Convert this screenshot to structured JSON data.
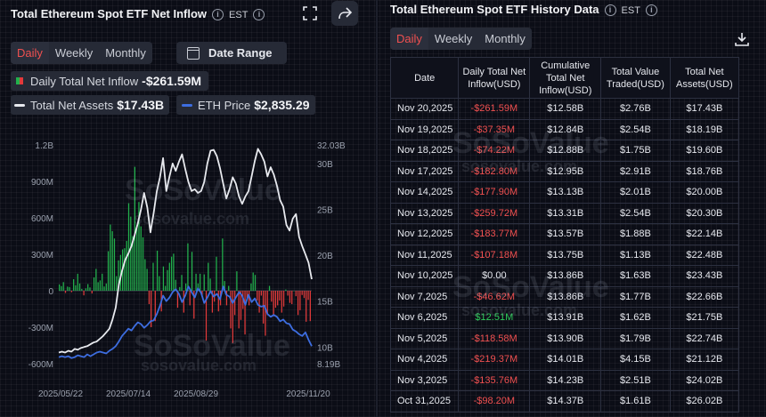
{
  "left": {
    "title": "Total Ethereum Spot ETF Net Inflow",
    "tz": "EST",
    "tabs": [
      "Daily",
      "Weekly",
      "Monthly"
    ],
    "date_range_label": "Date Range",
    "inflow_label": "Daily Total Net Inflow",
    "inflow_value": "-$261.59M",
    "assets_label": "Total Net Assets",
    "assets_value": "$17.43B",
    "eth_label": "ETH Price",
    "eth_value": "$2,835.29",
    "watermark_brand": "SoSoValue",
    "watermark_url": "sosovalue.com"
  },
  "right": {
    "title": "Total Ethereum Spot ETF History Data",
    "tz": "EST",
    "tabs": [
      "Daily",
      "Weekly",
      "Monthly"
    ],
    "columns": [
      "Date",
      "Daily Total Net Inflow(USD)",
      "Cumulative Total Net Inflow(USD)",
      "Total Value Traded(USD)",
      "Total Net Assets(USD)"
    ],
    "rows": [
      {
        "date": "Nov 20,2025",
        "inflow": "-$261.59M",
        "cum": "$12.58B",
        "traded": "$2.76B",
        "assets": "$17.43B"
      },
      {
        "date": "Nov 19,2025",
        "inflow": "-$37.35M",
        "cum": "$12.84B",
        "traded": "$2.54B",
        "assets": "$18.19B"
      },
      {
        "date": "Nov 18,2025",
        "inflow": "-$74.22M",
        "cum": "$12.88B",
        "traded": "$1.75B",
        "assets": "$19.60B"
      },
      {
        "date": "Nov 17,2025",
        "inflow": "-$182.80M",
        "cum": "$12.95B",
        "traded": "$2.91B",
        "assets": "$18.76B"
      },
      {
        "date": "Nov 14,2025",
        "inflow": "-$177.90M",
        "cum": "$13.13B",
        "traded": "$2.01B",
        "assets": "$20.00B"
      },
      {
        "date": "Nov 13,2025",
        "inflow": "-$259.72M",
        "cum": "$13.31B",
        "traded": "$2.54B",
        "assets": "$20.30B"
      },
      {
        "date": "Nov 12,2025",
        "inflow": "-$183.77M",
        "cum": "$13.57B",
        "traded": "$1.88B",
        "assets": "$22.14B"
      },
      {
        "date": "Nov 11,2025",
        "inflow": "-$107.18M",
        "cum": "$13.75B",
        "traded": "$1.13B",
        "assets": "$22.48B"
      },
      {
        "date": "Nov 10,2025",
        "inflow": "$0.00",
        "cum": "$13.86B",
        "traded": "$1.63B",
        "assets": "$23.43B"
      },
      {
        "date": "Nov 7,2025",
        "inflow": "-$46.62M",
        "cum": "$13.86B",
        "traded": "$1.77B",
        "assets": "$22.66B"
      },
      {
        "date": "Nov 6,2025",
        "inflow": "$12.51M",
        "cum": "$13.91B",
        "traded": "$1.62B",
        "assets": "$21.75B"
      },
      {
        "date": "Nov 5,2025",
        "inflow": "-$118.58M",
        "cum": "$13.90B",
        "traded": "$1.79B",
        "assets": "$22.74B"
      },
      {
        "date": "Nov 4,2025",
        "inflow": "-$219.37M",
        "cum": "$14.01B",
        "traded": "$4.15B",
        "assets": "$21.12B"
      },
      {
        "date": "Nov 3,2025",
        "inflow": "-$135.76M",
        "cum": "$14.23B",
        "traded": "$2.51B",
        "assets": "$24.02B"
      },
      {
        "date": "Oct 31,2025",
        "inflow": "-$98.20M",
        "cum": "$14.37B",
        "traded": "$1.61B",
        "assets": "$26.02B"
      }
    ],
    "watermark_brand": "SoSoValue",
    "watermark_url": "sosovalue.com"
  },
  "chart_data": {
    "type": "bar",
    "title": "Total Ethereum Spot ETF Net Inflow",
    "x_ticks": [
      "2025/05/22",
      "2025/07/14",
      "2025/08/29",
      "2025/11/20"
    ],
    "y_left_ticks": [
      "1.2B",
      "900M",
      "600M",
      "300M",
      "0",
      "-300M",
      "-600M"
    ],
    "y_left_range": [
      -600,
      1200
    ],
    "y_right_ticks": [
      "32.03B",
      "30B",
      "25B",
      "20B",
      "15B",
      "10B",
      "8.19B"
    ],
    "y_right_range": [
      8.19,
      32.03
    ],
    "inflow_millions": [
      52,
      38,
      71,
      -18,
      34,
      30,
      -12,
      95,
      45,
      140,
      60,
      15,
      -38,
      20,
      55,
      27,
      -22,
      110,
      180,
      70,
      85,
      140,
      35,
      60,
      325,
      545,
      490,
      430,
      120,
      250,
      295,
      340,
      350,
      410,
      720,
      610,
      450,
      1020,
      540,
      730,
      530,
      440,
      260,
      180,
      -110,
      -300,
      230,
      -250,
      330,
      120,
      -170,
      200,
      40,
      170,
      230,
      280,
      305,
      90,
      -140,
      30,
      130,
      -180,
      60,
      390,
      -120,
      320,
      -230,
      140,
      60,
      140,
      -40,
      135,
      -410,
      230,
      100,
      -180,
      -90,
      280,
      -170,
      -120,
      430,
      80,
      -120,
      40,
      -310,
      -430,
      -200,
      160,
      -310,
      -240,
      -150,
      -360,
      -60,
      -120,
      60,
      150,
      130,
      -80,
      -180,
      -40,
      -270,
      -370,
      -200,
      40,
      -90,
      -210,
      -140,
      -120,
      -80,
      -180,
      -130,
      10,
      -40,
      -100,
      -110,
      0,
      -45,
      -200,
      -160,
      -35,
      -60,
      -255,
      -75,
      -250
    ],
    "series": [
      {
        "name": "Total Net Assets",
        "color": "#e8eaef",
        "values_b": [
          9.4,
          9.5,
          9.4,
          9.6,
          9.5,
          9.8,
          9.7,
          9.9,
          10.0,
          10.1,
          10.3,
          10.5,
          10.6,
          10.9,
          11.2,
          11.6,
          12.0,
          13.0,
          14.3,
          16.8,
          18.3,
          19.5,
          20.2,
          21.0,
          22.2,
          23.5,
          25.0,
          26.8,
          25.2,
          22.5,
          24.6,
          27.0,
          28.5,
          30.6,
          27.0,
          28.6,
          30.0,
          29.2,
          30.2,
          31.0,
          29.4,
          28.0,
          27.0,
          27.2,
          26.8,
          27.0,
          28.0,
          30.0,
          31.4,
          31.5,
          30.8,
          29.5,
          27.8,
          26.2,
          27.2,
          28.5,
          27.8,
          26.4,
          25.6,
          26.4,
          27.0,
          28.6,
          30.3,
          31.6,
          31.0,
          30.2,
          28.6,
          29.6,
          28.8,
          27.6,
          26.0,
          25.3,
          23.3,
          22.7,
          24.0,
          24.5,
          22.0,
          21.0,
          20.1,
          19.2,
          17.4
        ]
      },
      {
        "name": "ETH Price",
        "color": "#3d6de0",
        "values_b": [
          8.9,
          9.0,
          8.9,
          9.0,
          8.8,
          8.9,
          9.1,
          9.0,
          8.9,
          9.2,
          9.0,
          9.2,
          9.4,
          9.5,
          9.4,
          9.3,
          9.6,
          9.8,
          10.1,
          10.6,
          11.2,
          11.6,
          12.0,
          11.8,
          12.3,
          12.7,
          12.5,
          12.1,
          12.4,
          12.8,
          12.9,
          13.6,
          14.5,
          15.6,
          15.0,
          15.4,
          16.0,
          16.3,
          15.8,
          14.9,
          15.6,
          16.6,
          16.0,
          15.4,
          16.4,
          15.9,
          14.8,
          15.4,
          16.1,
          15.5,
          15.8,
          15.2,
          16.6,
          15.7,
          15.5,
          14.8,
          15.4,
          16.0,
          15.6,
          14.6,
          15.7,
          14.9,
          15.3,
          14.6,
          14.4,
          14.5,
          13.6,
          13.3,
          13.5,
          13.3,
          12.8,
          13.0,
          12.6,
          12.5,
          11.9,
          11.7,
          11.4,
          11.2,
          11.6,
          10.8,
          10.1
        ]
      }
    ]
  }
}
